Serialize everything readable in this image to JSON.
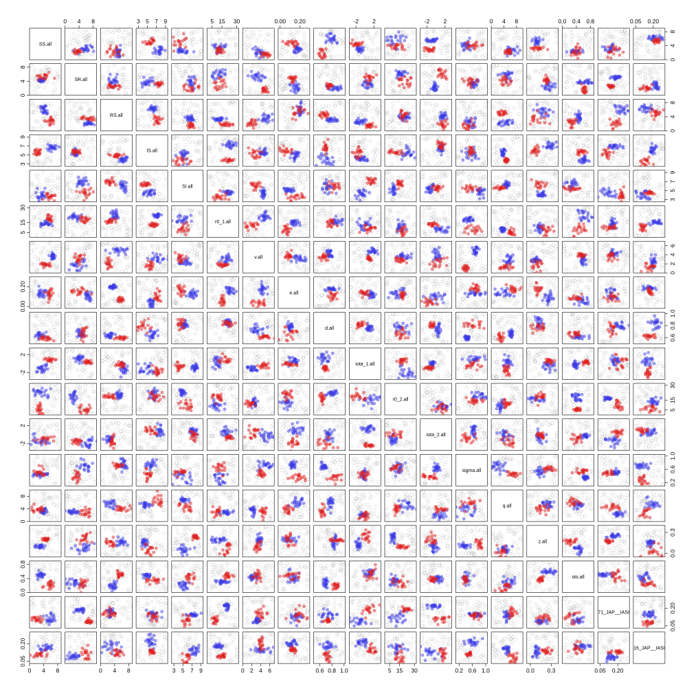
{
  "chart_data": {
    "type": "scatter",
    "subtype": "pairs-matrix",
    "variables": [
      "SS.all",
      "SR.all",
      "RS.all",
      "IS.all",
      "SI.all",
      "r0_1.all",
      "v.all",
      "e.all",
      "d.all",
      "iota_1.all",
      "r0_2.all",
      "iota_2.all",
      "sigma.all",
      "q.all",
      "z.all",
      "sto.all",
      "71_JAP__IASI",
      "16_JAP__IASI"
    ],
    "axis_ranges": [
      [
        0,
        9
      ],
      [
        0,
        9
      ],
      [
        0,
        9
      ],
      [
        2.5,
        9.5
      ],
      [
        2.5,
        9.5
      ],
      [
        0,
        32
      ],
      [
        0,
        7
      ],
      [
        -0.02,
        0.3
      ],
      [
        0.5,
        1.02
      ],
      [
        -3.5,
        3.5
      ],
      [
        0,
        32
      ],
      [
        -3.5,
        3.5
      ],
      [
        0.1,
        1.05
      ],
      [
        0,
        10
      ],
      [
        -0.05,
        0.4
      ],
      [
        0,
        0.9
      ],
      [
        0.03,
        0.3
      ],
      [
        0.03,
        0.3
      ]
    ],
    "tick_labels": {
      "SS.all": [
        "0",
        "4",
        "8"
      ],
      "SR.all": [
        "0",
        "4",
        "8"
      ],
      "RS.all": [
        "0",
        "4",
        "8"
      ],
      "IS.all": [
        "3",
        "5",
        "7",
        "9"
      ],
      "SI.all": [
        "3",
        "5",
        "7",
        "9"
      ],
      "r0_1.all": [
        "5",
        "15",
        "30"
      ],
      "v.all": [
        "0",
        "2",
        "4",
        "6"
      ],
      "e.all": [
        "0.00",
        "0.20"
      ],
      "d.all": [
        "0.6",
        "0.8",
        "1.0"
      ],
      "iota_1.all": [
        "-2",
        "2"
      ],
      "r0_2.all": [
        "5",
        "15",
        "30"
      ],
      "iota_2.all": [
        "-2",
        "2"
      ],
      "sigma.all": [
        "0.2",
        "0.6",
        "1.0"
      ],
      "q.all": [
        "0",
        "4",
        "8"
      ],
      "z.all": [
        "0.0",
        "0.3"
      ],
      "sto.all": [
        "0.0",
        "0.4",
        "0.8"
      ],
      "71_JAP__IASI": [
        "0.05",
        "0.20"
      ],
      "16_JAP__IASI": [
        "0.05",
        "0.20"
      ]
    },
    "tick_values": {
      "SS.all": [
        0,
        4,
        8
      ],
      "SR.all": [
        0,
        4,
        8
      ],
      "RS.all": [
        0,
        4,
        8
      ],
      "IS.all": [
        3,
        5,
        7,
        9
      ],
      "SI.all": [
        3,
        5,
        7,
        9
      ],
      "r0_1.all": [
        5,
        15,
        30
      ],
      "v.all": [
        0,
        2,
        4,
        6
      ],
      "e.all": [
        0.0,
        0.2
      ],
      "d.all": [
        0.6,
        0.8,
        1.0
      ],
      "iota_1.all": [
        -2,
        2
      ],
      "r0_2.all": [
        5,
        15,
        30
      ],
      "iota_2.all": [
        -2,
        2
      ],
      "sigma.all": [
        0.2,
        0.6,
        1.0
      ],
      "q.all": [
        0,
        4,
        8
      ],
      "z.all": [
        0.0,
        0.3
      ],
      "sto.all": [
        0.0,
        0.4,
        0.8
      ],
      "71_JAP__IASI": [
        0.05,
        0.2
      ],
      "16_JAP__IASI": [
        0.05,
        0.2
      ]
    },
    "axis_sides": {
      "top": [
        "SR.all",
        "IS.all",
        "r0_1.all",
        "e.all",
        "iota_1.all",
        "iota_2.all",
        "q.all",
        "sto.all",
        "16_JAP__IASI"
      ],
      "bottom": [
        "SS.all",
        "RS.all",
        "SI.all",
        "v.all",
        "d.all",
        "r0_2.all",
        "sigma.all",
        "z.all",
        "71_JAP__IASI"
      ],
      "right": [
        "SS.all",
        "RS.all",
        "SI.all",
        "v.all",
        "d.all",
        "r0_2.all",
        "sigma.all",
        "z.all",
        "71_JAP__IASI"
      ],
      "left": [
        "SR.all",
        "IS.all",
        "r0_1.all",
        "e.all",
        "iota_1.all",
        "iota_2.all",
        "q.all",
        "sto.all",
        "16_JAP__IASI"
      ]
    },
    "series": [
      {
        "key": "prior",
        "color": "#8c8c8c",
        "style": "open-circle"
      },
      {
        "key": "chain-a",
        "color": "#3a3ae6",
        "style": "filled-circle"
      },
      {
        "key": "chain-b",
        "color": "#e02020",
        "style": "filled-circle"
      }
    ],
    "marks_per_panel": {
      "prior": 45,
      "chain-a": 22,
      "chain-b": 18
    },
    "grid": false,
    "legend": "none"
  }
}
